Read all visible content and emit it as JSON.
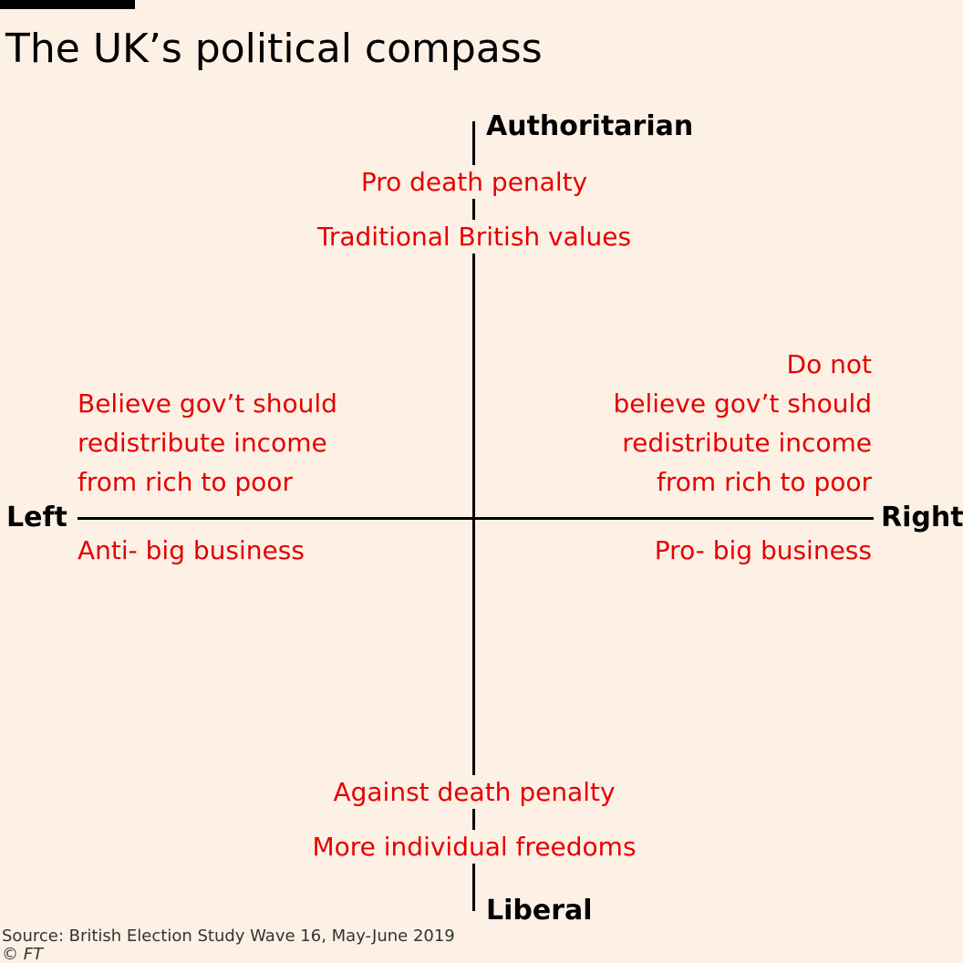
{
  "colors": {
    "background": "#fdf1e6",
    "accent": "#e60000",
    "axis": "#000000"
  },
  "title": "The UK’s political compass",
  "axes": {
    "top": "Authoritarian",
    "bottom": "Liberal",
    "left": "Left",
    "right": "Right"
  },
  "labels": {
    "top_1": "Pro death penalty",
    "top_2": "Traditional British values",
    "left_block": [
      "Believe gov’t should",
      "redistribute income",
      "from rich to poor"
    ],
    "left_below": "Anti- big business",
    "right_block": [
      "Do not",
      "believe gov’t should",
      "redistribute income",
      "from rich to poor"
    ],
    "right_below": "Pro- big business",
    "bottom_1": "Against death penalty",
    "bottom_2": "More individual freedoms"
  },
  "footer": {
    "source": "Source: British Election Study Wave 16, May-June 2019",
    "credit": "© FT"
  }
}
